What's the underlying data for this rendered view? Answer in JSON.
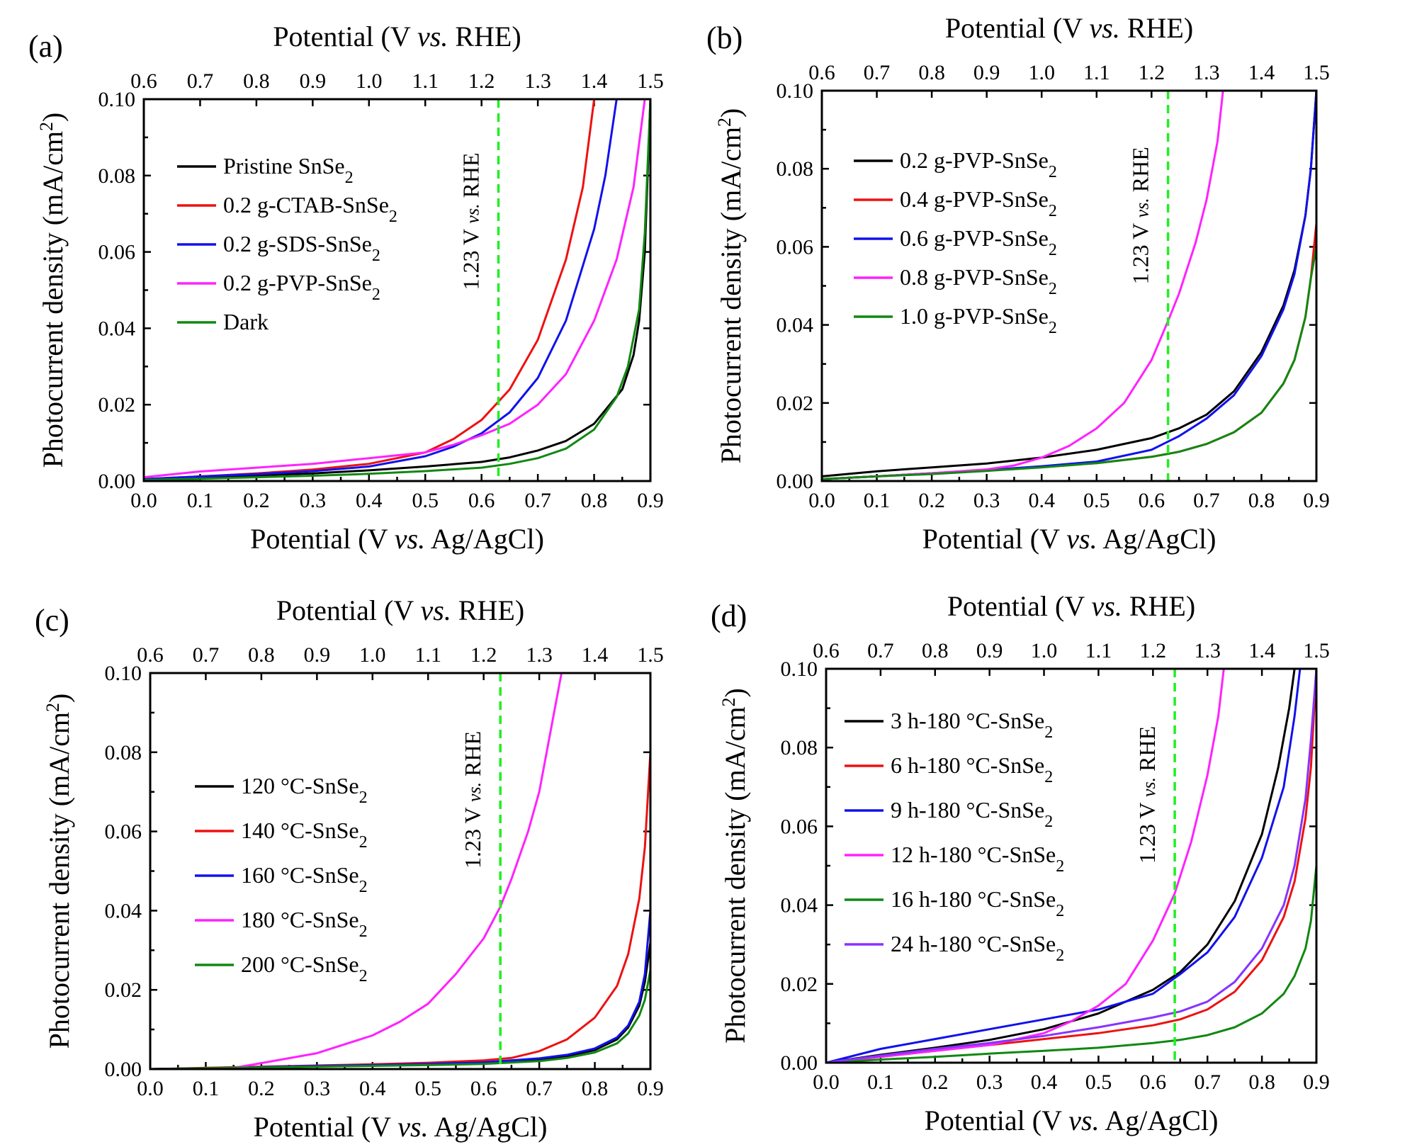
{
  "chart_data": [
    {
      "type": "line",
      "panel_label": "(a)",
      "xlabel_bottom": [
        "Potential (V ",
        "vs.",
        " Ag/AgCl)"
      ],
      "xlabel_top": [
        "Potential (V ",
        "vs.",
        " RHE)"
      ],
      "ylabel": "Photocurrent density (mA/cm",
      "ylabel_sup": "2",
      "ylabel_close": ")",
      "xlim": [
        0,
        0.9
      ],
      "ylim": [
        0,
        0.1
      ],
      "xticks": [
        "0.0",
        "0.1",
        "0.2",
        "0.3",
        "0.4",
        "0.5",
        "0.6",
        "0.7",
        "0.8",
        "0.9"
      ],
      "top_xticks": [
        "0.6",
        "0.7",
        "0.8",
        "0.9",
        "1.0",
        "1.1",
        "1.2",
        "1.3",
        "1.4",
        "1.5"
      ],
      "yticks": [
        "0.00",
        "0.02",
        "0.04",
        "0.06",
        "0.08",
        "0.10"
      ],
      "marker_line": {
        "x": 0.63,
        "label": [
          "1.23 V ",
          "vs.",
          " RHE"
        ],
        "color": "#22ee22"
      },
      "legend": {
        "position": "upper-left"
      },
      "series": [
        {
          "name": "Pristine SnSe",
          "sub": "2",
          "color": "#000000",
          "x": [
            0.0,
            0.1,
            0.2,
            0.3,
            0.4,
            0.5,
            0.6,
            0.65,
            0.7,
            0.75,
            0.8,
            0.85,
            0.87,
            0.88,
            0.89,
            0.9
          ],
          "y": [
            0.0005,
            0.001,
            0.0015,
            0.002,
            0.0028,
            0.0038,
            0.005,
            0.0062,
            0.008,
            0.0105,
            0.015,
            0.024,
            0.033,
            0.042,
            0.06,
            0.1
          ]
        },
        {
          "name": "0.2 g-CTAB-SnSe",
          "sub": "2",
          "color": "#ee1111",
          "x": [
            0.0,
            0.1,
            0.2,
            0.3,
            0.4,
            0.5,
            0.55,
            0.6,
            0.65,
            0.7,
            0.75,
            0.78,
            0.8
          ],
          "y": [
            0.0005,
            0.0012,
            0.002,
            0.003,
            0.0045,
            0.0075,
            0.011,
            0.016,
            0.024,
            0.037,
            0.058,
            0.077,
            0.1
          ]
        },
        {
          "name": "0.2 g-SDS-SnSe",
          "sub": "2",
          "color": "#1111ee",
          "x": [
            0.0,
            0.1,
            0.2,
            0.3,
            0.4,
            0.5,
            0.55,
            0.6,
            0.65,
            0.7,
            0.75,
            0.8,
            0.82,
            0.84
          ],
          "y": [
            0.0005,
            0.0012,
            0.0018,
            0.0026,
            0.0038,
            0.0065,
            0.009,
            0.0125,
            0.018,
            0.027,
            0.042,
            0.066,
            0.08,
            0.1
          ]
        },
        {
          "name": "0.2 g-PVP-SnSe",
          "sub": "2",
          "color": "#ff22ff",
          "x": [
            0.0,
            0.1,
            0.2,
            0.3,
            0.4,
            0.5,
            0.55,
            0.6,
            0.65,
            0.7,
            0.75,
            0.8,
            0.84,
            0.87,
            0.89
          ],
          "y": [
            0.001,
            0.0025,
            0.0035,
            0.0045,
            0.006,
            0.0075,
            0.0095,
            0.012,
            0.015,
            0.02,
            0.028,
            0.042,
            0.058,
            0.077,
            0.1
          ]
        },
        {
          "name": "Dark",
          "sub": "",
          "color": "#118811",
          "x": [
            0.0,
            0.1,
            0.2,
            0.3,
            0.4,
            0.5,
            0.6,
            0.65,
            0.7,
            0.75,
            0.8,
            0.84,
            0.86,
            0.88,
            0.89,
            0.9
          ],
          "y": [
            0.0003,
            0.0006,
            0.001,
            0.0014,
            0.0019,
            0.0026,
            0.0035,
            0.0045,
            0.006,
            0.0085,
            0.0135,
            0.022,
            0.03,
            0.045,
            0.065,
            0.1
          ]
        }
      ]
    },
    {
      "type": "line",
      "panel_label": "(b)",
      "xlabel_bottom": [
        "Potential (V ",
        "vs.",
        " Ag/AgCl)"
      ],
      "xlabel_top": [
        "Potential (V ",
        "vs.",
        " RHE)"
      ],
      "ylabel": "Photocurrent density (mA/cm",
      "ylabel_sup": "2",
      "ylabel_close": ")",
      "xlim": [
        0,
        0.9
      ],
      "ylim": [
        0,
        0.1
      ],
      "xticks": [
        "0.0",
        "0.1",
        "0.2",
        "0.3",
        "0.4",
        "0.5",
        "0.6",
        "0.7",
        "0.8",
        "0.9"
      ],
      "top_xticks": [
        "0.6",
        "0.7",
        "0.8",
        "0.9",
        "1.0",
        "1.1",
        "1.2",
        "1.3",
        "1.4",
        "1.5"
      ],
      "yticks": [
        "0.00",
        "0.02",
        "0.04",
        "0.06",
        "0.08",
        "0.10"
      ],
      "marker_line": {
        "x": 0.63,
        "label": [
          "1.23 V ",
          "vs.",
          " RHE"
        ],
        "color": "#22ee22"
      },
      "legend": {
        "position": "upper-left"
      },
      "series": [
        {
          "name": "0.2 g-PVP-SnSe",
          "sub": "2",
          "color": "#000000",
          "x": [
            0.0,
            0.1,
            0.2,
            0.3,
            0.4,
            0.5,
            0.6,
            0.65,
            0.7,
            0.75,
            0.8,
            0.84,
            0.86,
            0.88,
            0.89,
            0.9
          ],
          "y": [
            0.0012,
            0.0025,
            0.0035,
            0.0045,
            0.006,
            0.008,
            0.011,
            0.0135,
            0.017,
            0.023,
            0.033,
            0.045,
            0.054,
            0.068,
            0.08,
            0.1
          ]
        },
        {
          "name": "0.4 g-PVP-SnSe",
          "sub": "2",
          "color": "#ee1111",
          "x": [
            0.0,
            0.1,
            0.2,
            0.3,
            0.4,
            0.5,
            0.6,
            0.65,
            0.7,
            0.75,
            0.8,
            0.84,
            0.86,
            0.88,
            0.89,
            0.9
          ],
          "y": [
            0.0005,
            0.0012,
            0.002,
            0.0028,
            0.0036,
            0.0046,
            0.0062,
            0.0075,
            0.0095,
            0.0125,
            0.0175,
            0.025,
            0.031,
            0.042,
            0.052,
            0.066
          ]
        },
        {
          "name": "0.6 g-PVP-SnSe",
          "sub": "2",
          "color": "#1111ee",
          "x": [
            0.0,
            0.1,
            0.2,
            0.3,
            0.4,
            0.5,
            0.6,
            0.65,
            0.7,
            0.75,
            0.8,
            0.84,
            0.86,
            0.88,
            0.89,
            0.9
          ],
          "y": [
            0.0005,
            0.0012,
            0.002,
            0.0028,
            0.0038,
            0.005,
            0.008,
            0.0115,
            0.016,
            0.022,
            0.032,
            0.044,
            0.053,
            0.068,
            0.08,
            0.1
          ]
        },
        {
          "name": "0.8 g-PVP-SnSe",
          "sub": "2",
          "color": "#ff22ff",
          "x": [
            0.0,
            0.1,
            0.2,
            0.3,
            0.35,
            0.4,
            0.45,
            0.5,
            0.55,
            0.6,
            0.63,
            0.65,
            0.68,
            0.7,
            0.72,
            0.73
          ],
          "y": [
            0.0005,
            0.0012,
            0.002,
            0.003,
            0.004,
            0.006,
            0.009,
            0.0135,
            0.02,
            0.031,
            0.041,
            0.048,
            0.061,
            0.072,
            0.087,
            0.1
          ]
        },
        {
          "name": "1.0 g-PVP-SnSe",
          "sub": "2",
          "color": "#118811",
          "x": [
            0.0,
            0.1,
            0.2,
            0.3,
            0.4,
            0.5,
            0.6,
            0.65,
            0.7,
            0.75,
            0.8,
            0.84,
            0.86,
            0.88,
            0.89,
            0.9
          ],
          "y": [
            0.0005,
            0.0012,
            0.0018,
            0.0026,
            0.0035,
            0.0046,
            0.0062,
            0.0075,
            0.0095,
            0.0125,
            0.0175,
            0.025,
            0.031,
            0.042,
            0.052,
            0.06
          ]
        }
      ]
    },
    {
      "type": "line",
      "panel_label": "(c)",
      "xlabel_bottom": [
        "Potential (V ",
        "vs.",
        " Ag/AgCl)"
      ],
      "xlabel_top": [
        "Potential (V ",
        "vs.",
        " RHE)"
      ],
      "ylabel": "Photocurrent density (mA/cm",
      "ylabel_sup": "2",
      "ylabel_close": ")",
      "xlim": [
        0,
        0.9
      ],
      "ylim": [
        0,
        0.1
      ],
      "xticks": [
        "0.0",
        "0.1",
        "0.2",
        "0.3",
        "0.4",
        "0.5",
        "0.6",
        "0.7",
        "0.8",
        "0.9"
      ],
      "top_xticks": [
        "0.6",
        "0.7",
        "0.8",
        "0.9",
        "1.0",
        "1.1",
        "1.2",
        "1.3",
        "1.4",
        "1.5"
      ],
      "yticks": [
        "0.00",
        "0.02",
        "0.04",
        "0.06",
        "0.08",
        "0.10"
      ],
      "marker_line": {
        "x": 0.63,
        "label": [
          "1.23 V ",
          "vs.",
          " RHE"
        ],
        "color": "#22ee22"
      },
      "legend": {
        "position": "center-left"
      },
      "series": [
        {
          "name": "120 °C-SnSe",
          "sub": "2",
          "color": "#000000",
          "x": [
            0.0,
            0.1,
            0.2,
            0.3,
            0.4,
            0.5,
            0.6,
            0.7,
            0.75,
            0.8,
            0.84,
            0.86,
            0.88,
            0.89,
            0.9
          ],
          "y": [
            0.0,
            0.0002,
            0.0005,
            0.0008,
            0.001,
            0.0013,
            0.0017,
            0.0025,
            0.0033,
            0.0048,
            0.0075,
            0.0105,
            0.016,
            0.022,
            0.032
          ]
        },
        {
          "name": "140 °C-SnSe",
          "sub": "2",
          "color": "#ee1111",
          "x": [
            0.0,
            0.1,
            0.2,
            0.3,
            0.4,
            0.5,
            0.6,
            0.65,
            0.7,
            0.75,
            0.8,
            0.84,
            0.86,
            0.88,
            0.89,
            0.9
          ],
          "y": [
            0.0,
            0.0003,
            0.0006,
            0.0009,
            0.0012,
            0.0016,
            0.0022,
            0.0028,
            0.0045,
            0.0075,
            0.013,
            0.021,
            0.029,
            0.043,
            0.056,
            0.08
          ]
        },
        {
          "name": "160 °C-SnSe",
          "sub": "2",
          "color": "#1111ee",
          "x": [
            0.0,
            0.1,
            0.2,
            0.3,
            0.4,
            0.5,
            0.6,
            0.7,
            0.75,
            0.8,
            0.84,
            0.86,
            0.88,
            0.89,
            0.9
          ],
          "y": [
            0.0,
            0.0002,
            0.0005,
            0.0008,
            0.001,
            0.0013,
            0.0017,
            0.0027,
            0.0036,
            0.0052,
            0.008,
            0.011,
            0.017,
            0.024,
            0.04
          ]
        },
        {
          "name": "180 °C-SnSe",
          "sub": "2",
          "color": "#ff22ff",
          "x": [
            0.0,
            0.1,
            0.15,
            0.2,
            0.3,
            0.4,
            0.45,
            0.5,
            0.55,
            0.6,
            0.63,
            0.65,
            0.68,
            0.7,
            0.72,
            0.74
          ],
          "y": [
            0.0,
            0.0,
            0.0003,
            0.0015,
            0.004,
            0.0085,
            0.012,
            0.0165,
            0.024,
            0.033,
            0.041,
            0.048,
            0.06,
            0.07,
            0.085,
            0.1
          ]
        },
        {
          "name": "200 °C-SnSe",
          "sub": "2",
          "color": "#118811",
          "x": [
            0.0,
            0.1,
            0.2,
            0.3,
            0.4,
            0.5,
            0.6,
            0.7,
            0.75,
            0.8,
            0.84,
            0.86,
            0.88,
            0.89,
            0.9
          ],
          "y": [
            0.0,
            0.0002,
            0.0004,
            0.0006,
            0.0008,
            0.001,
            0.0013,
            0.002,
            0.0028,
            0.0042,
            0.0065,
            0.009,
            0.0135,
            0.0175,
            0.025
          ]
        }
      ]
    },
    {
      "type": "line",
      "panel_label": "(d)",
      "xlabel_bottom": [
        "Potential (V ",
        "vs.",
        " Ag/AgCl)"
      ],
      "xlabel_top": [
        "Potential (V ",
        "vs.",
        " RHE)"
      ],
      "ylabel": "Photocurrent density (mA/cm",
      "ylabel_sup": "2",
      "ylabel_close": ")",
      "xlim": [
        0,
        0.9
      ],
      "ylim": [
        0,
        0.1
      ],
      "xticks": [
        "0.0",
        "0.1",
        "0.2",
        "0.3",
        "0.4",
        "0.5",
        "0.6",
        "0.7",
        "0.8",
        "0.9"
      ],
      "top_xticks": [
        "0.6",
        "0.7",
        "0.8",
        "0.9",
        "1.0",
        "1.1",
        "1.2",
        "1.3",
        "1.4",
        "1.5"
      ],
      "yticks": [
        "0.00",
        "0.02",
        "0.04",
        "0.06",
        "0.08",
        "0.10"
      ],
      "marker_line": {
        "x": 0.64,
        "label": [
          "1.23 V ",
          "vs.",
          " RHE"
        ],
        "color": "#22ee22"
      },
      "legend": {
        "position": "upper-left"
      },
      "series": [
        {
          "name": "3 h-180 °C-SnSe",
          "sub": "2",
          "color": "#000000",
          "x": [
            0.0,
            0.1,
            0.2,
            0.3,
            0.4,
            0.5,
            0.6,
            0.65,
            0.7,
            0.75,
            0.8,
            0.83,
            0.85,
            0.86
          ],
          "y": [
            0.0,
            0.002,
            0.0038,
            0.0058,
            0.0085,
            0.0125,
            0.0185,
            0.023,
            0.03,
            0.041,
            0.058,
            0.075,
            0.09,
            0.1
          ]
        },
        {
          "name": "6 h-180 °C-SnSe",
          "sub": "2",
          "color": "#ee1111",
          "x": [
            0.0,
            0.1,
            0.2,
            0.3,
            0.4,
            0.5,
            0.6,
            0.65,
            0.7,
            0.75,
            0.8,
            0.84,
            0.86,
            0.88,
            0.89,
            0.9
          ],
          "y": [
            0.0,
            0.0015,
            0.003,
            0.0045,
            0.006,
            0.0075,
            0.0095,
            0.011,
            0.0135,
            0.018,
            0.026,
            0.037,
            0.046,
            0.062,
            0.075,
            0.1
          ]
        },
        {
          "name": "9 h-180 °C-SnSe",
          "sub": "2",
          "color": "#1111ee",
          "x": [
            0.0,
            0.1,
            0.2,
            0.3,
            0.4,
            0.5,
            0.6,
            0.65,
            0.7,
            0.75,
            0.8,
            0.84,
            0.86,
            0.87
          ],
          "y": [
            0.0,
            0.0035,
            0.006,
            0.0085,
            0.011,
            0.0135,
            0.0175,
            0.0225,
            0.028,
            0.037,
            0.052,
            0.07,
            0.088,
            0.1
          ]
        },
        {
          "name": "12 h-180 °C-SnSe",
          "sub": "2",
          "color": "#ff22ff",
          "x": [
            0.0,
            0.1,
            0.2,
            0.3,
            0.4,
            0.45,
            0.5,
            0.55,
            0.6,
            0.64,
            0.67,
            0.7,
            0.72,
            0.73
          ],
          "y": [
            0.0,
            0.0015,
            0.003,
            0.0045,
            0.0075,
            0.0105,
            0.0145,
            0.02,
            0.031,
            0.043,
            0.056,
            0.073,
            0.088,
            0.1
          ]
        },
        {
          "name": "16 h-180 °C-SnSe",
          "sub": "2",
          "color": "#118811",
          "x": [
            0.0,
            0.1,
            0.2,
            0.3,
            0.4,
            0.5,
            0.6,
            0.65,
            0.7,
            0.75,
            0.8,
            0.84,
            0.86,
            0.88,
            0.89,
            0.9
          ],
          "y": [
            0.0,
            0.0008,
            0.0015,
            0.0023,
            0.003,
            0.0038,
            0.005,
            0.0058,
            0.007,
            0.009,
            0.0125,
            0.0175,
            0.022,
            0.029,
            0.036,
            0.05
          ]
        },
        {
          "name": "24 h-180 °C-SnSe",
          "sub": "2",
          "color": "#8833ff",
          "x": [
            0.0,
            0.1,
            0.2,
            0.3,
            0.4,
            0.5,
            0.6,
            0.65,
            0.7,
            0.75,
            0.8,
            0.84,
            0.86,
            0.88,
            0.89,
            0.9
          ],
          "y": [
            0.0,
            0.0018,
            0.0035,
            0.005,
            0.0068,
            0.009,
            0.0115,
            0.013,
            0.0155,
            0.0205,
            0.029,
            0.04,
            0.05,
            0.067,
            0.082,
            0.1
          ]
        }
      ]
    }
  ]
}
